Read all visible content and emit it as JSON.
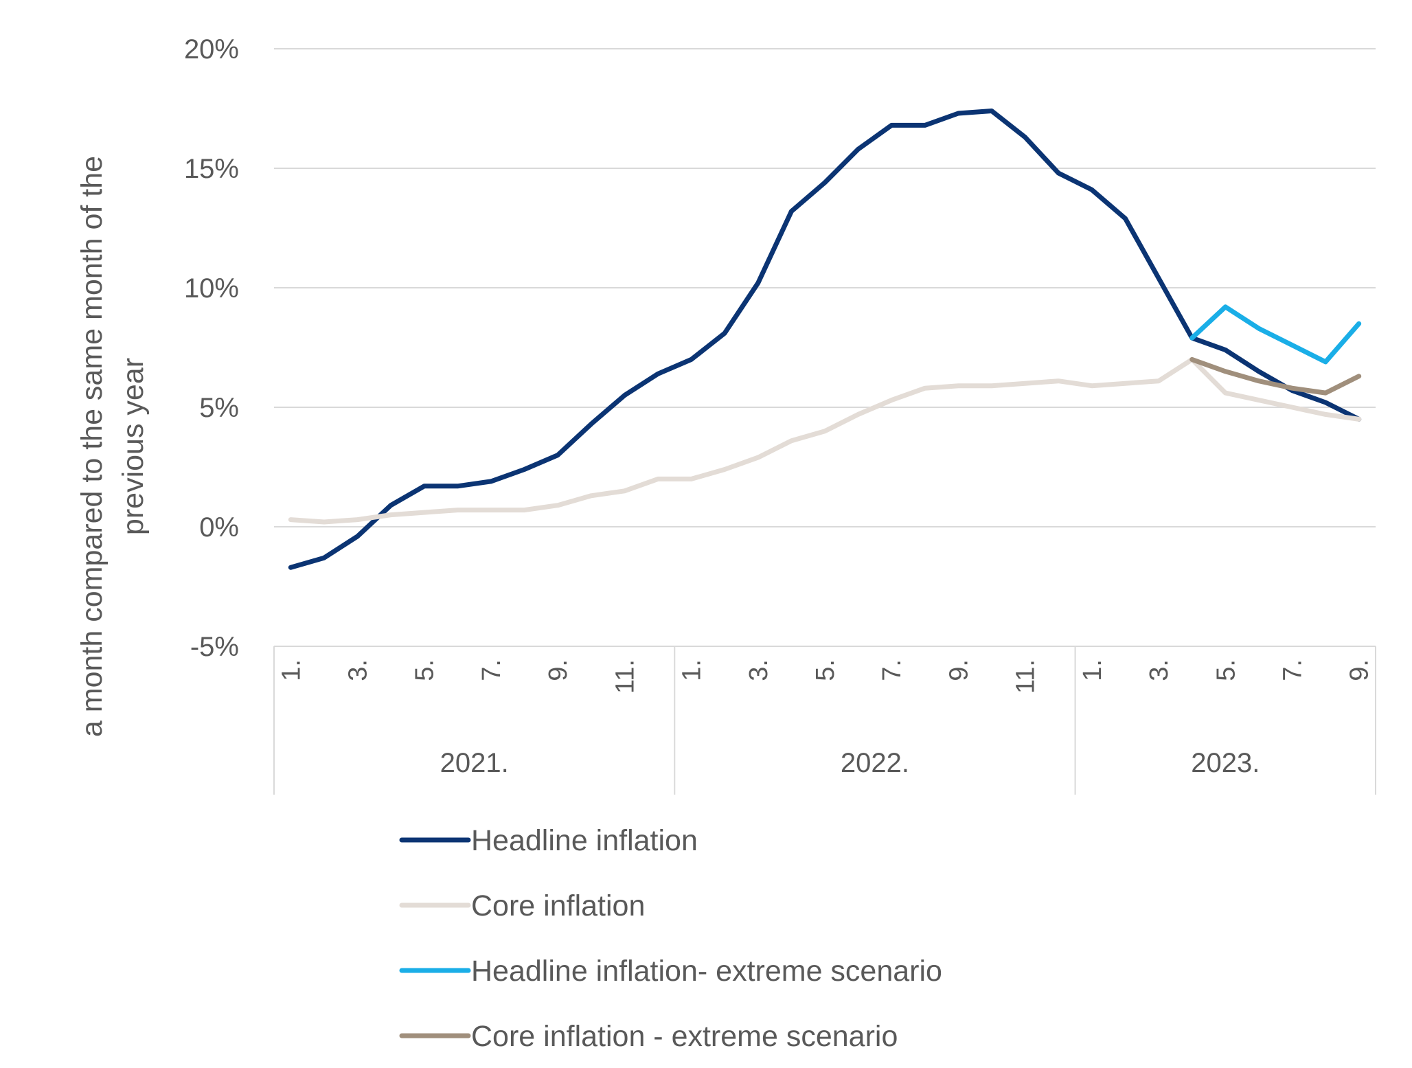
{
  "chart_data": {
    "type": "line",
    "title": "",
    "ylabel": "a month compared to the same month of the previous year",
    "ylabel_lines": [
      "a month compared to the same month of the",
      "previous year"
    ],
    "ylim": [
      -5,
      20
    ],
    "yticks": [
      -5,
      0,
      5,
      10,
      15,
      20
    ],
    "ytick_labels": [
      "-5%",
      "0%",
      "5%",
      "10%",
      "15%",
      "20%"
    ],
    "grid": true,
    "legend_position": "bottom",
    "x": [
      "2021-01",
      "2021-02",
      "2021-03",
      "2021-04",
      "2021-05",
      "2021-06",
      "2021-07",
      "2021-08",
      "2021-09",
      "2021-10",
      "2021-11",
      "2021-12",
      "2022-01",
      "2022-02",
      "2022-03",
      "2022-04",
      "2022-05",
      "2022-06",
      "2022-07",
      "2022-08",
      "2022-09",
      "2022-10",
      "2022-11",
      "2022-12",
      "2023-01",
      "2023-02",
      "2023-03",
      "2023-04",
      "2023-05",
      "2023-06",
      "2023-07",
      "2023-08",
      "2023-09"
    ],
    "month_tick_labels": [
      "1.",
      "",
      "3.",
      "",
      "5.",
      "",
      "7.",
      "",
      "9.",
      "",
      "11.",
      "",
      "1.",
      "",
      "3.",
      "",
      "5.",
      "",
      "7.",
      "",
      "9.",
      "",
      "11.",
      "",
      "1.",
      "",
      "3.",
      "",
      "5.",
      "",
      "7.",
      "",
      "9."
    ],
    "year_groups": [
      {
        "label": "2021.",
        "months": 12
      },
      {
        "label": "2022.",
        "months": 12
      },
      {
        "label": "2023.",
        "months": 9
      }
    ],
    "series": [
      {
        "name": "Headline inflation",
        "color": "#0b3473",
        "values": [
          -1.7,
          -1.3,
          -0.4,
          0.9,
          1.7,
          1.7,
          1.9,
          2.4,
          3.0,
          4.3,
          5.5,
          6.4,
          7.0,
          8.1,
          10.2,
          13.2,
          14.4,
          15.8,
          16.8,
          16.8,
          17.3,
          17.4,
          16.3,
          14.8,
          14.1,
          12.9,
          10.4,
          7.9,
          7.4,
          6.5,
          5.7,
          5.2,
          4.5
        ]
      },
      {
        "name": "Core inflation",
        "color": "#e3dcd6",
        "values": [
          0.3,
          0.2,
          0.3,
          0.5,
          0.6,
          0.7,
          0.7,
          0.7,
          0.9,
          1.3,
          1.5,
          2.0,
          2.0,
          2.4,
          2.9,
          3.6,
          4.0,
          4.7,
          5.3,
          5.8,
          5.9,
          5.9,
          6.0,
          6.1,
          5.9,
          6.0,
          6.1,
          7.0,
          5.6,
          5.3,
          5.0,
          4.7,
          4.5
        ]
      },
      {
        "name": "Headline inflation- extreme scenario",
        "color": "#1aaee7",
        "values": [
          null,
          null,
          null,
          null,
          null,
          null,
          null,
          null,
          null,
          null,
          null,
          null,
          null,
          null,
          null,
          null,
          null,
          null,
          null,
          null,
          null,
          null,
          null,
          null,
          null,
          null,
          null,
          7.9,
          9.2,
          8.3,
          7.6,
          6.9,
          8.5
        ]
      },
      {
        "name": "Core inflation -  extreme scenario",
        "color": "#a08f7c",
        "values": [
          null,
          null,
          null,
          null,
          null,
          null,
          null,
          null,
          null,
          null,
          null,
          null,
          null,
          null,
          null,
          null,
          null,
          null,
          null,
          null,
          null,
          null,
          null,
          null,
          null,
          null,
          null,
          7.0,
          6.5,
          6.1,
          5.8,
          5.6,
          6.3
        ]
      }
    ]
  }
}
